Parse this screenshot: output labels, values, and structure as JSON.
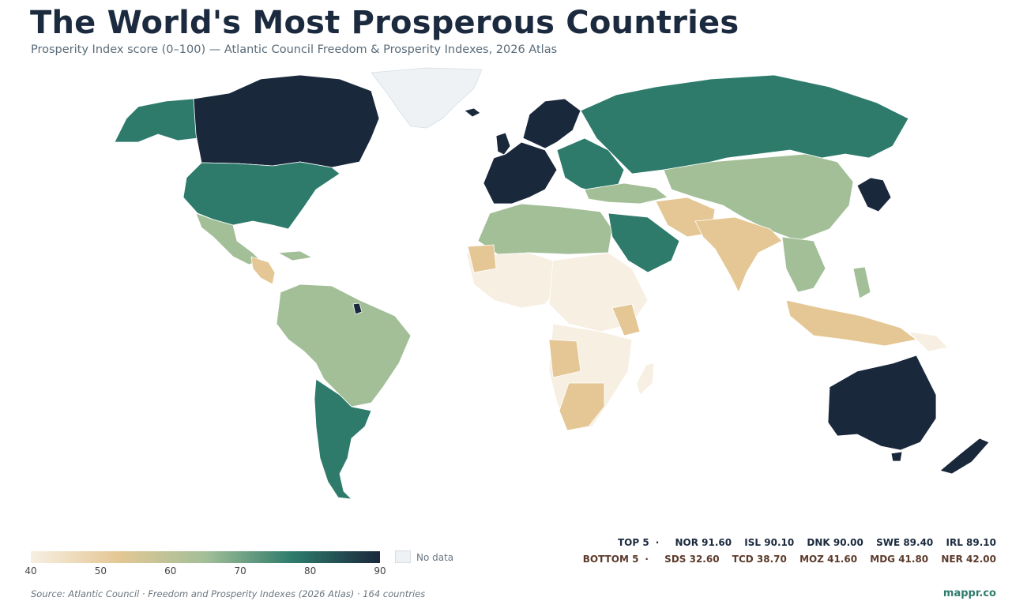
{
  "header": {
    "title": "The World's Most Prosperous Countries",
    "subtitle": "Prosperity Index score (0–100) — Atlantic Council Freedom & Prosperity Indexes, 2026 Atlas"
  },
  "legend": {
    "ticks": [
      "40",
      "50",
      "60",
      "70",
      "80",
      "90"
    ],
    "min": 40,
    "max": 90,
    "nodata_label": "No data",
    "colors": {
      "low": "#f7efe2",
      "mid_low": "#e4c795",
      "mid": "#a3bf98",
      "mid_high": "#2e7b6c",
      "high": "#1a283c",
      "nodata": "#eef2f5"
    }
  },
  "rankings": {
    "top_label": "TOP 5",
    "separator": "·",
    "top": [
      {
        "code": "NOR",
        "score": "91.60"
      },
      {
        "code": "ISL",
        "score": "90.10"
      },
      {
        "code": "DNK",
        "score": "90.00"
      },
      {
        "code": "SWE",
        "score": "89.40"
      },
      {
        "code": "IRL",
        "score": "89.10"
      }
    ],
    "bottom_label": "BOTTOM 5",
    "bottom": [
      {
        "code": "SDS",
        "score": "32.60"
      },
      {
        "code": "TCD",
        "score": "38.70"
      },
      {
        "code": "MOZ",
        "score": "41.60"
      },
      {
        "code": "MDG",
        "score": "41.80"
      },
      {
        "code": "NER",
        "score": "42.00"
      }
    ]
  },
  "footer": {
    "source": "Source: Atlantic Council · Freedom and Prosperity Indexes (2026 Atlas) · 164 countries",
    "brand": "mappr.co"
  }
}
